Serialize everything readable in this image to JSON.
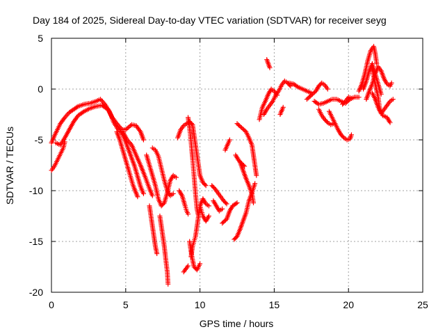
{
  "chart_data": {
    "type": "scatter",
    "title": "Day 184 of 2025, Sidereal Day-to-day VTEC variation (SDTVAR) for receiver seyg",
    "xlabel": "GPS time / hours",
    "ylabel": "SDTVAR / TECUs",
    "xlim": [
      0,
      25
    ],
    "ylim": [
      -20,
      5
    ],
    "xticks": [
      "0",
      "5",
      "10",
      "15",
      "20",
      "25"
    ],
    "yticks": [
      "5",
      "0",
      "-5",
      "-10",
      "-15",
      "-20"
    ],
    "grid": true,
    "marker": "+",
    "color": "#ff0000",
    "series": [
      {
        "points": [
          [
            0.0,
            -8.0
          ],
          [
            0.2,
            -7.6
          ],
          [
            0.4,
            -7.0
          ],
          [
            0.6,
            -6.4
          ],
          [
            0.8,
            -5.8
          ],
          [
            0.9,
            -5.2
          ]
        ]
      },
      {
        "points": [
          [
            0.0,
            -5.3
          ],
          [
            0.2,
            -4.6
          ],
          [
            0.4,
            -4.0
          ],
          [
            0.6,
            -3.4
          ],
          [
            0.9,
            -2.8
          ],
          [
            1.2,
            -2.3
          ],
          [
            1.5,
            -2.0
          ],
          [
            1.8,
            -1.7
          ],
          [
            2.2,
            -1.5
          ],
          [
            2.6,
            -1.4
          ],
          [
            3.0,
            -1.2
          ],
          [
            3.3,
            -1.0
          ],
          [
            3.6,
            -1.5
          ],
          [
            3.9,
            -2.2
          ],
          [
            4.2,
            -3.3
          ],
          [
            4.5,
            -4.0
          ],
          [
            5.0,
            -4.0
          ],
          [
            5.4,
            -3.5
          ],
          [
            5.7,
            -3.6
          ],
          [
            6.0,
            -4.2
          ],
          [
            6.2,
            -5.0
          ]
        ]
      },
      {
        "points": [
          [
            0.3,
            -5.3
          ],
          [
            0.6,
            -5.5
          ],
          [
            0.9,
            -4.8
          ],
          [
            1.2,
            -4.0
          ],
          [
            1.5,
            -3.2
          ],
          [
            1.8,
            -2.6
          ],
          [
            2.2,
            -2.2
          ],
          [
            2.6,
            -1.9
          ],
          [
            3.0,
            -1.7
          ],
          [
            3.4,
            -1.6
          ],
          [
            3.8,
            -2.0
          ],
          [
            4.1,
            -2.8
          ],
          [
            4.4,
            -3.4
          ],
          [
            4.7,
            -3.9
          ]
        ]
      },
      {
        "points": [
          [
            4.6,
            -4.0
          ],
          [
            4.8,
            -4.5
          ],
          [
            5.0,
            -5.2
          ],
          [
            5.2,
            -6.0
          ],
          [
            5.4,
            -6.8
          ],
          [
            5.6,
            -7.6
          ],
          [
            5.8,
            -8.6
          ],
          [
            6.0,
            -9.6
          ],
          [
            6.2,
            -10.3
          ]
        ]
      },
      {
        "points": [
          [
            4.8,
            -4.2
          ],
          [
            5.1,
            -5.0
          ],
          [
            5.4,
            -5.5
          ],
          [
            5.7,
            -6.5
          ],
          [
            6.0,
            -7.5
          ],
          [
            6.3,
            -8.6
          ],
          [
            6.6,
            -9.8
          ],
          [
            6.8,
            -10.5
          ]
        ]
      },
      {
        "points": [
          [
            4.4,
            -4.2
          ],
          [
            4.6,
            -5.0
          ],
          [
            4.8,
            -6.0
          ],
          [
            5.0,
            -7.0
          ],
          [
            5.2,
            -8.0
          ],
          [
            5.5,
            -9.5
          ],
          [
            5.8,
            -10.6
          ]
        ]
      },
      {
        "points": [
          [
            6.4,
            -6.5
          ],
          [
            6.6,
            -7.5
          ],
          [
            6.8,
            -8.5
          ],
          [
            7.0,
            -9.5
          ],
          [
            7.2,
            -10.8
          ],
          [
            7.4,
            -11.5
          ],
          [
            7.6,
            -11.2
          ],
          [
            7.8,
            -10.2
          ],
          [
            8.0,
            -9.0
          ],
          [
            8.2,
            -8.5
          ],
          [
            8.4,
            -8.7
          ]
        ]
      },
      {
        "points": [
          [
            6.8,
            -5.8
          ],
          [
            7.0,
            -6.0
          ],
          [
            7.2,
            -6.6
          ],
          [
            7.4,
            -7.8
          ],
          [
            7.6,
            -9.0
          ],
          [
            7.8,
            -10.0
          ],
          [
            8.0,
            -10.5
          ],
          [
            8.2,
            -10.3
          ]
        ]
      },
      {
        "points": [
          [
            6.6,
            -11.5
          ],
          [
            6.7,
            -12.5
          ],
          [
            6.8,
            -13.5
          ],
          [
            6.9,
            -14.5
          ],
          [
            7.0,
            -15.5
          ],
          [
            7.1,
            -16.2
          ]
        ]
      },
      {
        "points": [
          [
            7.3,
            -12.5
          ],
          [
            7.4,
            -13.5
          ],
          [
            7.5,
            -14.5
          ],
          [
            7.6,
            -15.5
          ],
          [
            7.7,
            -16.8
          ],
          [
            7.8,
            -18.0
          ],
          [
            7.85,
            -19.2
          ]
        ]
      },
      {
        "points": [
          [
            8.6,
            -10.0
          ],
          [
            8.8,
            -10.5
          ],
          [
            9.0,
            -11.5
          ],
          [
            9.1,
            -12.0
          ],
          [
            9.2,
            -12.3
          ]
        ]
      },
      {
        "points": [
          [
            8.9,
            -18.0
          ],
          [
            9.2,
            -17.4
          ]
        ]
      },
      {
        "points": [
          [
            8.5,
            -4.8
          ],
          [
            8.7,
            -4.0
          ],
          [
            8.9,
            -3.6
          ],
          [
            9.1,
            -3.4
          ],
          [
            9.3,
            -3.2
          ],
          [
            9.5,
            -3.5
          ],
          [
            9.6,
            -4.5
          ],
          [
            9.7,
            -5.5
          ],
          [
            9.8,
            -6.5
          ],
          [
            9.9,
            -7.5
          ],
          [
            10.0,
            -8.5
          ],
          [
            10.2,
            -9.2
          ],
          [
            10.4,
            -9.5
          ]
        ]
      },
      {
        "points": [
          [
            9.2,
            -2.8
          ],
          [
            9.3,
            -3.8
          ],
          [
            9.4,
            -5.2
          ],
          [
            9.5,
            -6.8
          ],
          [
            9.6,
            -8.5
          ],
          [
            9.7,
            -10.3
          ],
          [
            9.8,
            -11.8
          ],
          [
            9.9,
            -12.5
          ]
        ]
      },
      {
        "points": [
          [
            9.3,
            -15.0
          ],
          [
            9.4,
            -16.0
          ],
          [
            9.5,
            -16.8
          ],
          [
            9.6,
            -17.5
          ],
          [
            9.8,
            -17.8
          ],
          [
            10.0,
            -17.2
          ]
        ]
      },
      {
        "points": [
          [
            9.4,
            -16.5
          ],
          [
            9.5,
            -15.5
          ],
          [
            9.6,
            -15.0
          ],
          [
            9.7,
            -14.5
          ],
          [
            9.8,
            -13.5
          ],
          [
            9.9,
            -12.5
          ],
          [
            10.0,
            -11.5
          ],
          [
            10.2,
            -10.8
          ],
          [
            10.4,
            -11.3
          ],
          [
            10.6,
            -11.5
          ]
        ]
      },
      {
        "points": [
          [
            10.0,
            -11.5
          ],
          [
            10.1,
            -12.0
          ],
          [
            10.2,
            -12.5
          ],
          [
            10.4,
            -13.0
          ],
          [
            10.6,
            -12.5
          ]
        ]
      },
      {
        "points": [
          [
            10.9,
            -11.0
          ],
          [
            11.1,
            -11.5
          ],
          [
            11.3,
            -12.0
          ],
          [
            11.5,
            -11.8
          ]
        ]
      },
      {
        "points": [
          [
            10.8,
            -9.5
          ],
          [
            11.0,
            -9.8
          ],
          [
            11.2,
            -10.2
          ],
          [
            11.4,
            -10.6
          ],
          [
            11.6,
            -11.0
          ],
          [
            11.8,
            -11.3
          ]
        ]
      },
      {
        "points": [
          [
            11.5,
            -13.2
          ],
          [
            11.8,
            -12.8
          ],
          [
            12.0,
            -12.0
          ],
          [
            12.2,
            -11.5
          ],
          [
            12.5,
            -11.2
          ]
        ]
      },
      {
        "points": [
          [
            12.3,
            -14.8
          ],
          [
            12.5,
            -14.5
          ],
          [
            12.7,
            -13.8
          ],
          [
            12.9,
            -13.0
          ],
          [
            13.1,
            -12.2
          ],
          [
            13.3,
            -11.0
          ],
          [
            13.5,
            -10.2
          ],
          [
            13.7,
            -9.3
          ]
        ]
      },
      {
        "points": [
          [
            12.4,
            -6.5
          ],
          [
            12.6,
            -7.0
          ],
          [
            12.8,
            -7.3
          ],
          [
            13.0,
            -7.6
          ]
        ]
      },
      {
        "points": [
          [
            12.7,
            -7.2
          ],
          [
            12.9,
            -8.0
          ],
          [
            13.1,
            -8.8
          ],
          [
            13.3,
            -9.5
          ],
          [
            13.5,
            -10.3
          ],
          [
            13.6,
            -11.2
          ]
        ]
      },
      {
        "points": [
          [
            12.5,
            -3.4
          ],
          [
            12.8,
            -3.8
          ],
          [
            13.1,
            -4.2
          ],
          [
            13.3,
            -4.8
          ],
          [
            13.5,
            -5.5
          ],
          [
            13.6,
            -6.5
          ],
          [
            13.7,
            -7.5
          ],
          [
            13.8,
            -8.5
          ]
        ]
      },
      {
        "points": [
          [
            11.7,
            -6.0
          ],
          [
            12.0,
            -5.0
          ]
        ]
      },
      {
        "points": [
          [
            14.0,
            -3.0
          ],
          [
            14.2,
            -1.8
          ],
          [
            14.4,
            -1.2
          ],
          [
            14.6,
            -0.5
          ],
          [
            14.8,
            0.0
          ],
          [
            15.0,
            -0.2
          ],
          [
            15.2,
            -0.6
          ]
        ]
      },
      {
        "points": [
          [
            14.3,
            -2.5
          ],
          [
            14.5,
            -2.0
          ],
          [
            14.7,
            -1.6
          ],
          [
            14.9,
            -1.2
          ],
          [
            15.1,
            -0.6
          ],
          [
            15.3,
            -0.2
          ],
          [
            15.5,
            0.4
          ],
          [
            15.7,
            0.8
          ],
          [
            15.9,
            0.6
          ],
          [
            16.1,
            0.3
          ]
        ]
      },
      {
        "points": [
          [
            14.5,
            2.9
          ],
          [
            14.6,
            2.5
          ],
          [
            14.7,
            2.1
          ]
        ]
      },
      {
        "points": [
          [
            15.4,
            -2.5
          ],
          [
            15.6,
            -1.8
          ]
        ]
      },
      {
        "points": [
          [
            16.0,
            0.6
          ],
          [
            16.3,
            0.5
          ],
          [
            16.6,
            0.2
          ],
          [
            16.9,
            0.0
          ],
          [
            17.2,
            -0.2
          ],
          [
            17.5,
            -0.4
          ]
        ]
      },
      {
        "points": [
          [
            17.2,
            -1.0
          ],
          [
            17.5,
            -0.6
          ],
          [
            17.8,
            -0.2
          ],
          [
            18.0,
            0.3
          ],
          [
            18.2,
            0.6
          ],
          [
            18.4,
            0.4
          ],
          [
            18.6,
            0.0
          ]
        ]
      },
      {
        "points": [
          [
            17.7,
            -1.2
          ],
          [
            18.0,
            -1.5
          ],
          [
            18.3,
            -1.4
          ],
          [
            18.6,
            -1.2
          ],
          [
            18.9,
            -1.0
          ],
          [
            19.2,
            -1.0
          ],
          [
            19.5,
            -1.2
          ],
          [
            19.8,
            -1.4
          ],
          [
            20.1,
            -1.0
          ],
          [
            20.4,
            -0.8
          ],
          [
            20.7,
            -0.8
          ]
        ]
      },
      {
        "points": [
          [
            18.0,
            -2.0
          ],
          [
            18.2,
            -2.6
          ],
          [
            18.4,
            -3.0
          ],
          [
            18.6,
            -3.3
          ],
          [
            18.8,
            -3.5
          ],
          [
            19.0,
            -3.4
          ]
        ]
      },
      {
        "points": [
          [
            18.7,
            -2.2
          ],
          [
            18.9,
            -2.8
          ],
          [
            19.1,
            -3.4
          ],
          [
            19.3,
            -4.0
          ],
          [
            19.5,
            -4.5
          ],
          [
            19.7,
            -4.8
          ],
          [
            19.9,
            -5.0
          ],
          [
            20.1,
            -4.9
          ],
          [
            20.2,
            -4.5
          ]
        ]
      },
      {
        "points": [
          [
            19.6,
            -1.5
          ],
          [
            19.8,
            -1.2
          ],
          [
            20.0,
            -0.8
          ],
          [
            20.2,
            -0.9
          ]
        ]
      },
      {
        "points": [
          [
            20.7,
            -0.2
          ],
          [
            20.9,
            0.5
          ],
          [
            21.1,
            1.5
          ],
          [
            21.3,
            2.8
          ],
          [
            21.5,
            3.8
          ],
          [
            21.7,
            4.2
          ],
          [
            21.8,
            3.5
          ],
          [
            21.9,
            2.5
          ]
        ]
      },
      {
        "points": [
          [
            21.0,
            0.0
          ],
          [
            21.2,
            0.8
          ],
          [
            21.4,
            1.8
          ],
          [
            21.6,
            2.5
          ],
          [
            21.8,
            1.5
          ],
          [
            22.0,
            0.5
          ],
          [
            22.2,
            -0.5
          ]
        ]
      },
      {
        "points": [
          [
            21.2,
            -1.0
          ],
          [
            21.4,
            -0.2
          ],
          [
            21.6,
            0.5
          ],
          [
            21.8,
            1.5
          ],
          [
            22.0,
            2.2
          ],
          [
            22.2,
            1.8
          ],
          [
            22.4,
            1.0
          ],
          [
            22.6,
            0.5
          ],
          [
            22.8,
            0.3
          ],
          [
            22.9,
            0.6
          ]
        ]
      },
      {
        "points": [
          [
            21.6,
            -0.4
          ],
          [
            21.8,
            -1.0
          ],
          [
            22.0,
            -1.8
          ],
          [
            22.2,
            -2.4
          ],
          [
            22.4,
            -2.0
          ],
          [
            22.6,
            -1.6
          ],
          [
            22.8,
            -1.2
          ],
          [
            23.0,
            -1.0
          ]
        ]
      },
      {
        "points": [
          [
            21.6,
            2.0
          ],
          [
            21.8,
            0.5
          ],
          [
            22.0,
            -0.8
          ],
          [
            22.1,
            -2.0
          ],
          [
            22.3,
            -2.6
          ],
          [
            22.6,
            -2.8
          ],
          [
            22.8,
            -3.3
          ]
        ]
      }
    ]
  }
}
